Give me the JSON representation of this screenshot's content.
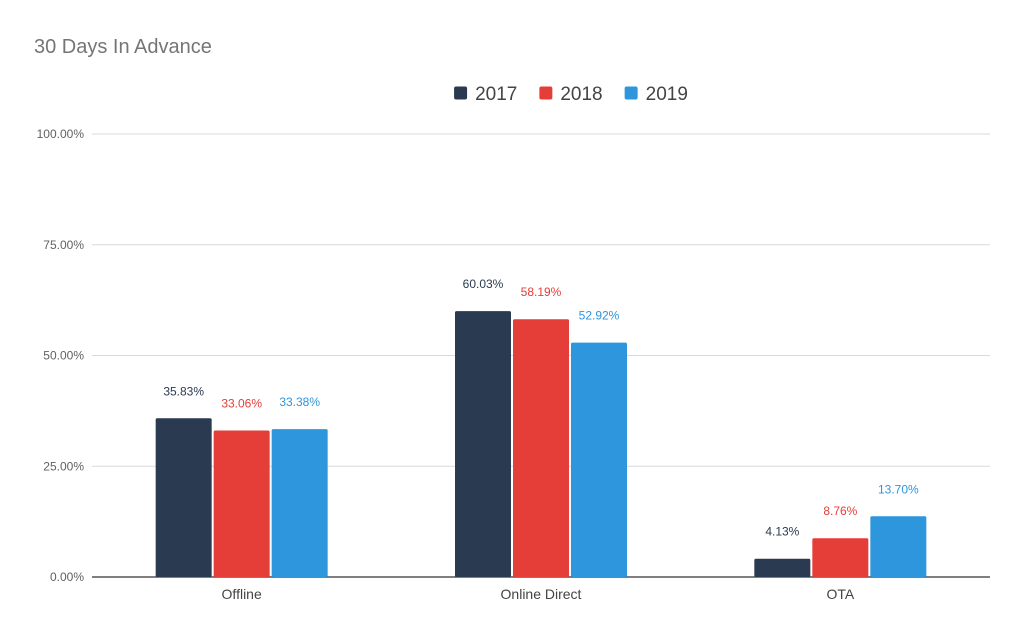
{
  "chart_data": {
    "type": "bar",
    "title": "30 Days In Advance",
    "xlabel": "",
    "ylabel": "",
    "categories": [
      "Offline",
      "Online Direct",
      "OTA"
    ],
    "series": [
      {
        "name": "2017",
        "color": "#2a3a50",
        "values": [
          35.83,
          60.03,
          4.13
        ],
        "labels": [
          "35.83%",
          "60.03%",
          "4.13%"
        ]
      },
      {
        "name": "2018",
        "color": "#e53d37",
        "values": [
          33.06,
          58.19,
          8.76
        ],
        "labels": [
          "33.06%",
          "58.19%",
          "8.76%"
        ]
      },
      {
        "name": "2019",
        "color": "#2e96dd",
        "values": [
          33.38,
          52.92,
          13.7
        ],
        "labels": [
          "33.38%",
          "52.92%",
          "13.70%"
        ]
      }
    ],
    "ylim": [
      0,
      100
    ],
    "yticks": [
      0,
      25,
      50,
      75,
      100
    ],
    "ytick_labels": [
      "0.00%",
      "25.00%",
      "50.00%",
      "75.00%",
      "100.00%"
    ],
    "grid": true,
    "legend_position": "top-center"
  }
}
